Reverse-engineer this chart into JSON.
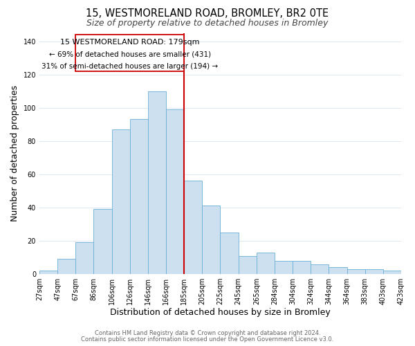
{
  "title": "15, WESTMORELAND ROAD, BROMLEY, BR2 0TE",
  "subtitle": "Size of property relative to detached houses in Bromley",
  "xlabel": "Distribution of detached houses by size in Bromley",
  "ylabel": "Number of detached properties",
  "bar_labels": [
    "27sqm",
    "47sqm",
    "67sqm",
    "86sqm",
    "106sqm",
    "126sqm",
    "146sqm",
    "166sqm",
    "185sqm",
    "205sqm",
    "225sqm",
    "245sqm",
    "265sqm",
    "284sqm",
    "304sqm",
    "324sqm",
    "344sqm",
    "364sqm",
    "383sqm",
    "403sqm",
    "423sqm"
  ],
  "bar_values": [
    2,
    9,
    19,
    39,
    87,
    93,
    110,
    99,
    56,
    41,
    25,
    11,
    13,
    8,
    8,
    6,
    4,
    3,
    3,
    2
  ],
  "bar_color": "#cde0f0",
  "bar_edge_color": "#6aaed6",
  "vline_color": "#cc0000",
  "annotation_title": "15 WESTMORELAND ROAD: 179sqm",
  "annotation_line1": "← 69% of detached houses are smaller (431)",
  "annotation_line2": "31% of semi-detached houses are larger (194) →",
  "annotation_box_color": "#ffffff",
  "annotation_box_edge": "#cc0000",
  "footer1": "Contains HM Land Registry data © Crown copyright and database right 2024.",
  "footer2": "Contains public sector information licensed under the Open Government Licence v3.0.",
  "ylim": [
    0,
    145
  ],
  "yticks": [
    0,
    20,
    40,
    60,
    80,
    100,
    120,
    140
  ],
  "background_color": "#ffffff",
  "grid_color": "#dde8f0",
  "title_fontsize": 10.5,
  "subtitle_fontsize": 9,
  "axis_label_fontsize": 9,
  "tick_fontsize": 7,
  "footer_fontsize": 6,
  "ann_fontsize": 8
}
